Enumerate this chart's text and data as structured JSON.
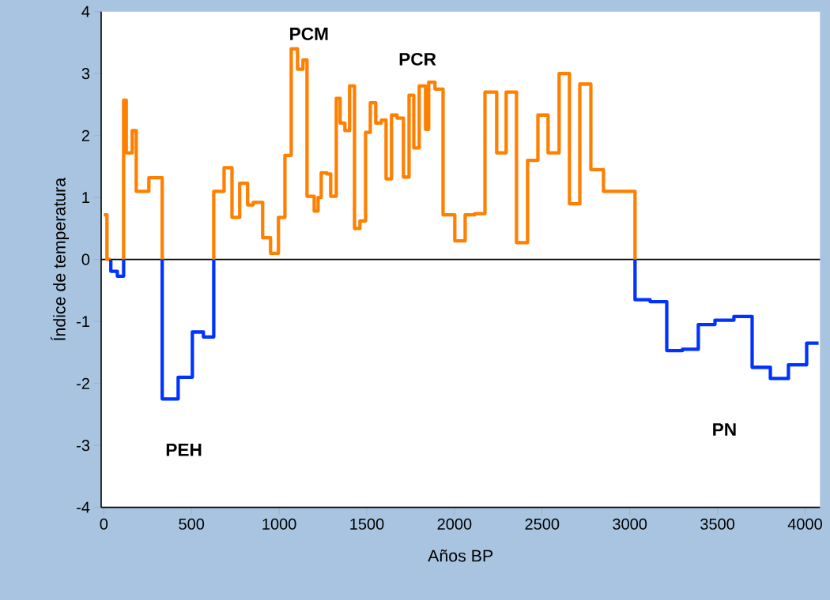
{
  "chart_data": {
    "type": "step",
    "xlabel": "Años BP",
    "ylabel": "Índice de temperatura",
    "xlim": [
      -15,
      4085
    ],
    "ylim": [
      -4,
      4
    ],
    "xticks": [
      0,
      500,
      1000,
      1500,
      2000,
      2500,
      3000,
      3500,
      4000
    ],
    "yticks": [
      -4,
      -3,
      -2,
      -1,
      0,
      1,
      2,
      3,
      4
    ],
    "series": [
      {
        "color": "#ff8000",
        "x": [
          0,
          18,
          40
        ],
        "values": [
          0.72,
          0,
          0
        ]
      },
      {
        "color": "#ff8000",
        "x": [
          113,
          113,
          128,
          162,
          185,
          257,
          333
        ],
        "values": [
          0,
          2.57,
          1.72,
          2.08,
          1.1,
          1.32,
          0
        ]
      },
      {
        "color": "#0033ff",
        "x": [
          40,
          40,
          77,
          113
        ],
        "values": [
          0,
          -0.19,
          -0.27,
          0
        ]
      },
      {
        "color": "#0033ff",
        "x": [
          333,
          333,
          424,
          505,
          568,
          627
        ],
        "values": [
          0,
          -2.25,
          -1.9,
          -1.17,
          -1.25,
          0
        ]
      },
      {
        "color": "#ff8000",
        "x": [
          627,
          627,
          686,
          731,
          775,
          820,
          852,
          906,
          951,
          996,
          1033,
          1069,
          1105,
          1136,
          1159,
          1200,
          1222,
          1240,
          1272,
          1294,
          1326,
          1348,
          1375,
          1402,
          1430,
          1461,
          1493,
          1520,
          1551,
          1583,
          1610,
          1641,
          1673,
          1709,
          1741,
          1768,
          1799,
          1835,
          1853,
          1889,
          1935,
          2002,
          2061,
          2115,
          2174,
          2241,
          2295,
          2354,
          2417,
          2476,
          2534,
          2597,
          2656,
          2715,
          2778,
          2850,
          3030
        ],
        "values": [
          0,
          1.1,
          1.48,
          0.68,
          1.23,
          0.88,
          0.92,
          0.35,
          0.1,
          0.68,
          1.68,
          3.4,
          3.07,
          3.22,
          1.02,
          0.78,
          1.0,
          1.4,
          1.38,
          1.02,
          2.6,
          2.2,
          2.08,
          2.8,
          0.5,
          0.62,
          2.05,
          2.53,
          2.2,
          2.25,
          1.3,
          2.33,
          2.28,
          1.33,
          2.65,
          1.8,
          2.8,
          2.1,
          2.86,
          2.75,
          0.72,
          0.3,
          0.72,
          0.74,
          2.7,
          1.72,
          2.7,
          0.27,
          1.6,
          2.33,
          1.72,
          3.0,
          0.9,
          2.83,
          1.45,
          1.1,
          0
        ]
      },
      {
        "color": "#0033ff",
        "x": [
          3030,
          3030,
          3116,
          3211,
          3301,
          3391,
          3486,
          3594,
          3698,
          3802,
          3905,
          4009,
          4077
        ],
        "values": [
          0,
          -0.65,
          -0.68,
          -1.47,
          -1.45,
          -1.05,
          -0.98,
          -0.92,
          -1.74,
          -1.92,
          -1.7,
          -1.35,
          -1.35
        ]
      }
    ],
    "ref_lines": [
      {
        "axis": "y",
        "value": 0,
        "color": "#000000"
      }
    ],
    "annotations": [
      "PCM",
      "PCR",
      "PEH",
      "PN"
    ]
  }
}
